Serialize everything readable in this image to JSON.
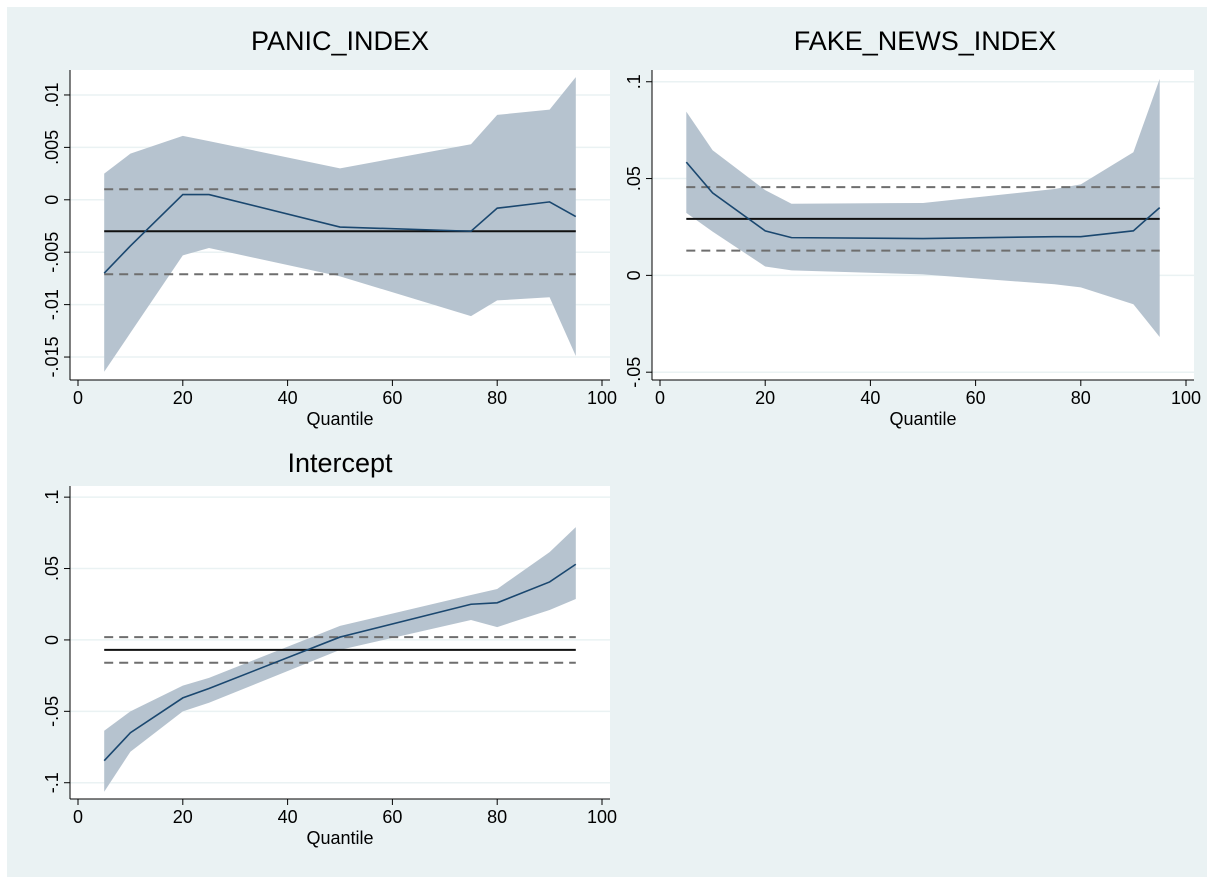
{
  "chart_data": [
    {
      "type": "line",
      "title": "PANIC_INDEX",
      "x_label": "Quantile",
      "x": [
        5,
        10,
        20,
        25,
        50,
        75,
        80,
        90,
        95
      ],
      "values": [
        -0.007,
        -0.0044,
        0.0005,
        0.0005,
        -0.0026,
        -0.003,
        -0.0008,
        -0.0002,
        -0.0016
      ],
      "upper": [
        0.0025,
        0.0044,
        0.0061,
        0.0056,
        0.003,
        0.0053,
        0.0081,
        0.0086,
        0.0117
      ],
      "lower": [
        -0.0164,
        -0.0127,
        -0.0053,
        -0.0046,
        -0.0073,
        -0.0111,
        -0.0096,
        -0.0093,
        -0.0149
      ],
      "ols": -0.003,
      "ols_ci": [
        -0.0071,
        0.001
      ],
      "color": "#1a476f",
      "band_color": "#b6c3cf",
      "xlim": [
        0,
        100
      ],
      "xticks": [
        0,
        20,
        40,
        60,
        80,
        100
      ],
      "ylim": [
        -0.017,
        0.012
      ],
      "yticks": [
        {
          "value": -0.015,
          "label": "-.015"
        },
        {
          "value": -0.01,
          "label": "-.01"
        },
        {
          "value": -0.005,
          "label": "-.005"
        },
        0,
        {
          "value": 0.005,
          "label": ".005"
        },
        {
          "value": 0.01,
          "label": ".01"
        }
      ],
      "grid": true
    },
    {
      "type": "line",
      "title": "FAKE_NEWS_INDEX",
      "x_label": "Quantile",
      "x": [
        5,
        10,
        20,
        25,
        50,
        75,
        80,
        90,
        95
      ],
      "values": [
        0.0585,
        0.0426,
        0.023,
        0.0195,
        0.019,
        0.02,
        0.02,
        0.023,
        0.035
      ],
      "upper": [
        0.0846,
        0.0646,
        0.044,
        0.037,
        0.0374,
        0.0446,
        0.047,
        0.0636,
        0.1015
      ],
      "lower": [
        0.0323,
        0.0226,
        0.0046,
        0.0026,
        0.0005,
        -0.0046,
        -0.0062,
        -0.0149,
        -0.0318
      ],
      "ols": 0.0292,
      "ols_ci": [
        0.0128,
        0.0456
      ],
      "color": "#1a476f",
      "band_color": "#b6c3cf",
      "xlim": [
        0,
        100
      ],
      "xticks": [
        0,
        20,
        40,
        60,
        80,
        100
      ],
      "ylim": [
        -0.053,
        0.104
      ],
      "yticks": [
        {
          "value": -0.05,
          "label": "-.05"
        },
        0,
        {
          "value": 0.05,
          "label": ".05"
        },
        {
          "value": 0.1,
          "label": ".1"
        }
      ],
      "grid": true
    },
    {
      "type": "line",
      "title": "Intercept",
      "x_label": "Quantile",
      "x": [
        5,
        10,
        20,
        25,
        50,
        75,
        80,
        90,
        95
      ],
      "values": [
        -0.0846,
        -0.065,
        -0.0406,
        -0.034,
        0.002,
        0.025,
        0.026,
        0.0406,
        0.053
      ],
      "upper": [
        -0.0636,
        -0.05,
        -0.032,
        -0.0266,
        0.0098,
        0.0315,
        0.0357,
        0.0615,
        0.079
      ],
      "lower": [
        -0.1063,
        -0.0783,
        -0.05,
        -0.044,
        -0.007,
        0.014,
        0.009,
        0.021,
        0.0287
      ],
      "ols": -0.007,
      "ols_ci": [
        -0.016,
        0.002
      ],
      "color": "#1a476f",
      "band_color": "#b6c3cf",
      "xlim": [
        0,
        100
      ],
      "xticks": [
        0,
        20,
        40,
        60,
        80,
        100
      ],
      "ylim": [
        -0.11,
        0.105
      ],
      "yticks": [
        {
          "value": -0.1,
          "label": "-.1"
        },
        {
          "value": -0.05,
          "label": "-.05"
        },
        0,
        {
          "value": 0.05,
          "label": ".05"
        },
        {
          "value": 0.1,
          "label": ".1"
        }
      ],
      "grid": true
    }
  ]
}
